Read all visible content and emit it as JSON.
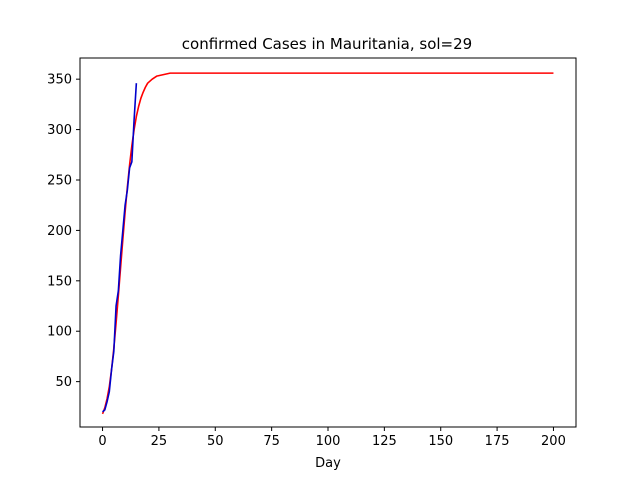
{
  "chart_data": {
    "type": "line",
    "title": "confirmed Cases in Mauritania, sol=29",
    "xlabel": "Day",
    "ylabel": "",
    "xlim": [
      -10,
      210
    ],
    "ylim": [
      5,
      371
    ],
    "xticks": [
      0,
      25,
      50,
      75,
      100,
      125,
      150,
      175,
      200
    ],
    "yticks": [
      50,
      100,
      150,
      200,
      250,
      300,
      350
    ],
    "grid": false,
    "series": [
      {
        "color": "#ff0000",
        "x": [
          0,
          1,
          2,
          3,
          4,
          5,
          6,
          7,
          8,
          9,
          10,
          11,
          12,
          13,
          14,
          15,
          16,
          17,
          18,
          19,
          20,
          22,
          24,
          26,
          28,
          30,
          35,
          40,
          50,
          75,
          100,
          125,
          150,
          175,
          200
        ],
        "y": [
          18,
          24,
          33,
          45,
          62,
          83,
          108,
          135,
          163,
          191,
          218,
          243,
          265,
          284,
          300,
          313,
          323,
          331,
          337,
          342,
          346,
          350,
          353,
          354,
          355,
          356,
          356,
          356,
          356,
          356,
          356,
          356,
          356,
          356,
          356
        ]
      },
      {
        "color": "#0000cc",
        "x": [
          0,
          1,
          2,
          3,
          4,
          5,
          6,
          7,
          8,
          9,
          10,
          11,
          12,
          13,
          14,
          15
        ],
        "y": [
          20,
          22,
          30,
          40,
          62,
          80,
          125,
          140,
          175,
          200,
          225,
          240,
          262,
          268,
          310,
          346
        ]
      }
    ]
  }
}
